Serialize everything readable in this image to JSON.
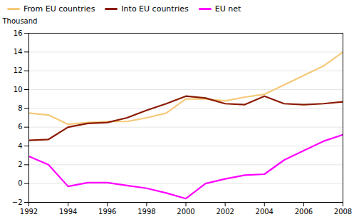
{
  "chart_data": {
    "type": "line",
    "ylabel": "Thousand",
    "x": [
      1992,
      1993,
      1994,
      1995,
      1996,
      1997,
      1998,
      1999,
      2000,
      2001,
      2002,
      2003,
      2004,
      2005,
      2006,
      2007,
      2008
    ],
    "series": [
      {
        "name": "From EU countries",
        "color": "#F5C97A",
        "values": [
          7.5,
          7.3,
          6.3,
          6.5,
          6.6,
          6.6,
          7.0,
          7.5,
          9.0,
          9.0,
          8.8,
          9.2,
          9.5,
          10.5,
          11.5,
          12.5,
          14.0
        ]
      },
      {
        "name": "Into EU countries",
        "color": "#8B1A00",
        "values": [
          4.6,
          4.7,
          6.0,
          6.4,
          6.5,
          7.0,
          7.8,
          8.5,
          9.3,
          9.1,
          8.5,
          8.4,
          9.3,
          8.5,
          8.4,
          8.5,
          8.7
        ]
      },
      {
        "name": "EU net",
        "color": "#FF00FF",
        "values": [
          2.9,
          2.0,
          -0.3,
          0.1,
          0.1,
          -0.2,
          -0.5,
          -1.0,
          -1.6,
          0.0,
          0.5,
          0.9,
          1.0,
          2.5,
          3.5,
          4.5,
          5.2
        ]
      }
    ],
    "xlim": [
      1992,
      2008
    ],
    "xticks": [
      1992,
      1994,
      1996,
      1998,
      2000,
      2002,
      2004,
      2006,
      2008
    ],
    "ylim": [
      -2,
      16
    ],
    "yticks": [
      -2,
      0,
      2,
      4,
      6,
      8,
      10,
      12,
      14,
      16
    ],
    "grid": true,
    "legend": "top-left"
  }
}
